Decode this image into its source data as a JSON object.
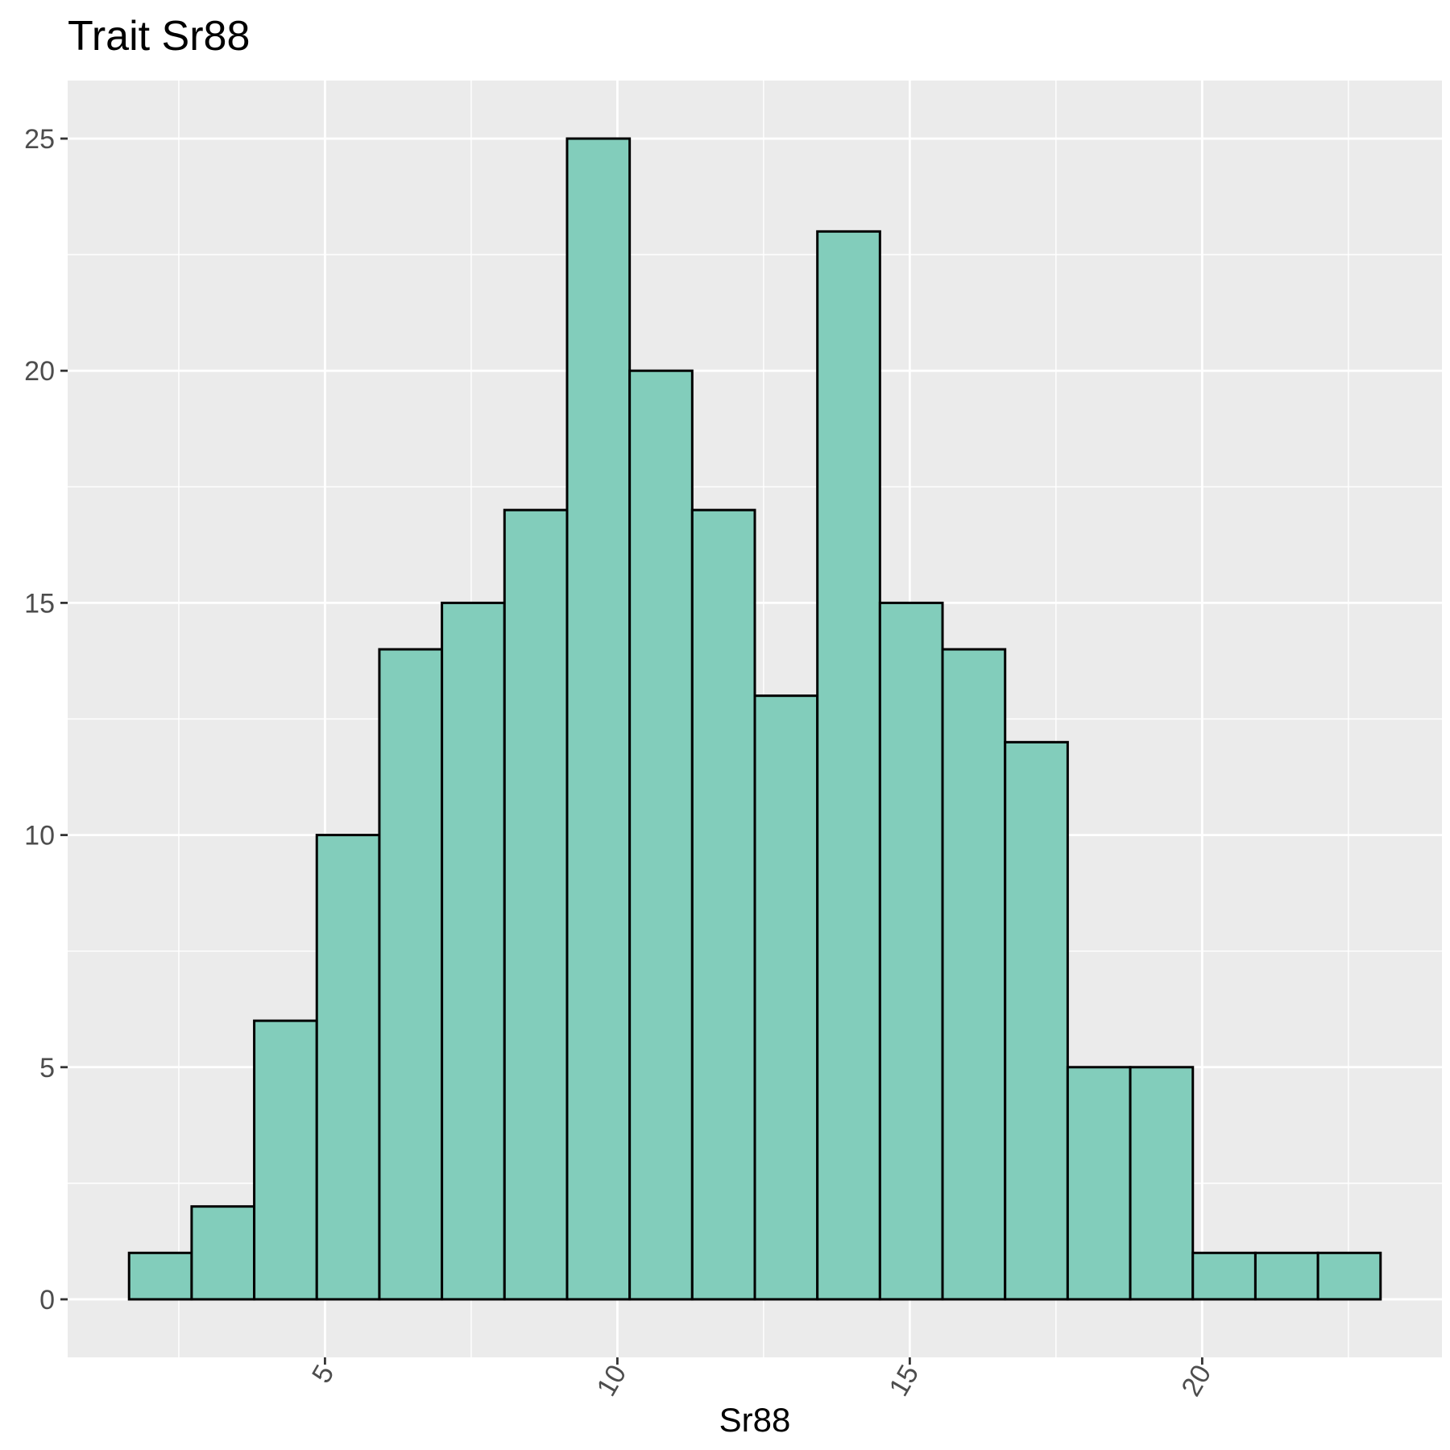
{
  "chart_data": {
    "type": "bar",
    "title": "Trait Sr88",
    "xlabel": "Sr88",
    "ylabel": "",
    "bin_width": 1.07,
    "bins": [
      {
        "start": 1.65,
        "end": 2.72,
        "count": 1
      },
      {
        "start": 2.72,
        "end": 3.79,
        "count": 2
      },
      {
        "start": 3.79,
        "end": 4.86,
        "count": 6
      },
      {
        "start": 4.86,
        "end": 5.93,
        "count": 10
      },
      {
        "start": 5.93,
        "end": 7.0,
        "count": 14
      },
      {
        "start": 7.0,
        "end": 8.07,
        "count": 15
      },
      {
        "start": 8.07,
        "end": 9.14,
        "count": 17
      },
      {
        "start": 9.14,
        "end": 10.21,
        "count": 25
      },
      {
        "start": 10.21,
        "end": 11.28,
        "count": 20
      },
      {
        "start": 11.28,
        "end": 12.35,
        "count": 17
      },
      {
        "start": 12.35,
        "end": 13.42,
        "count": 13
      },
      {
        "start": 13.42,
        "end": 14.49,
        "count": 23
      },
      {
        "start": 14.49,
        "end": 15.56,
        "count": 15
      },
      {
        "start": 15.56,
        "end": 16.63,
        "count": 14
      },
      {
        "start": 16.63,
        "end": 17.7,
        "count": 12
      },
      {
        "start": 17.7,
        "end": 18.77,
        "count": 5
      },
      {
        "start": 18.77,
        "end": 19.84,
        "count": 5
      },
      {
        "start": 19.84,
        "end": 20.91,
        "count": 1
      },
      {
        "start": 20.91,
        "end": 21.98,
        "count": 1
      },
      {
        "start": 21.98,
        "end": 23.05,
        "count": 1
      }
    ],
    "xlim": [
      0.6,
      24.1
    ],
    "ylim": [
      -1.25,
      26.25
    ],
    "x_ticks": [
      5,
      10,
      15,
      20
    ],
    "x_tick_labels": [
      "5",
      "10",
      "15",
      "20"
    ],
    "x_minor_ticks": [
      2.5,
      7.5,
      12.5,
      17.5,
      22.5
    ],
    "y_ticks": [
      0,
      5,
      10,
      15,
      20,
      25
    ],
    "y_tick_labels": [
      "0",
      "5",
      "10",
      "15",
      "20",
      "25"
    ],
    "y_minor_ticks": [
      2.5,
      7.5,
      12.5,
      17.5,
      22.5
    ],
    "grid": true,
    "colors": {
      "bar_fill": "#82cdbb",
      "bar_outline": "#000000",
      "panel_background": "#ebebeb",
      "grid_line": "#ffffff"
    }
  }
}
